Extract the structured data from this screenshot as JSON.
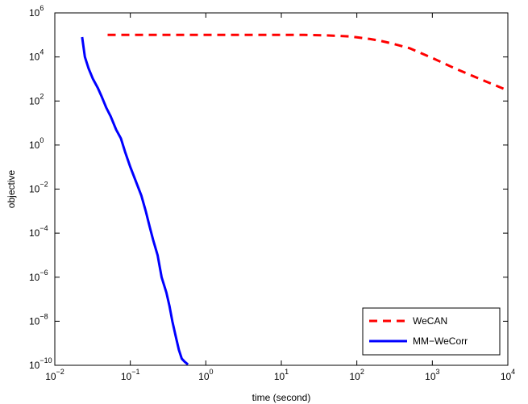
{
  "chart_data": {
    "type": "line",
    "xlabel": "time (second)",
    "ylabel": "objective",
    "x_scale": "log",
    "y_scale": "log",
    "xlim": [
      0.01,
      10000
    ],
    "ylim": [
      1e-10,
      1000000
    ],
    "grid": false,
    "legend_position": "bottom-right",
    "x_ticks": [
      {
        "value": 0.01,
        "base": "10",
        "exp": "−2"
      },
      {
        "value": 0.1,
        "base": "10",
        "exp": "−1"
      },
      {
        "value": 1,
        "base": "10",
        "exp": "0"
      },
      {
        "value": 10,
        "base": "10",
        "exp": "1"
      },
      {
        "value": 100,
        "base": "10",
        "exp": "2"
      },
      {
        "value": 1000,
        "base": "10",
        "exp": "3"
      },
      {
        "value": 10000,
        "base": "10",
        "exp": "4"
      }
    ],
    "y_ticks": [
      {
        "value": 1e-10,
        "base": "10",
        "exp": "−10"
      },
      {
        "value": 1e-08,
        "base": "10",
        "exp": "−8"
      },
      {
        "value": 1e-06,
        "base": "10",
        "exp": "−6"
      },
      {
        "value": 0.0001,
        "base": "10",
        "exp": "−4"
      },
      {
        "value": 0.01,
        "base": "10",
        "exp": "−2"
      },
      {
        "value": 1,
        "base": "10",
        "exp": "0"
      },
      {
        "value": 100,
        "base": "10",
        "exp": "2"
      },
      {
        "value": 10000,
        "base": "10",
        "exp": "4"
      },
      {
        "value": 1000000,
        "base": "10",
        "exp": "6"
      }
    ],
    "series": [
      {
        "name": "WeCAN",
        "color": "#ff0000",
        "style": "dashed",
        "x": [
          0.05,
          0.1,
          0.5,
          1,
          5,
          10,
          20,
          40,
          60,
          80,
          100,
          150,
          200,
          300,
          500,
          1000,
          2000,
          5000,
          10000
        ],
        "y": [
          100000,
          100000,
          100000,
          100000,
          100000,
          100000,
          100000,
          95000,
          90000,
          85000,
          78000,
          65000,
          55000,
          40000,
          25000,
          9000,
          3000,
          800,
          300
        ]
      },
      {
        "name": "MM−WeCorr",
        "color": "#0000ff",
        "style": "solid",
        "x": [
          0.023,
          0.025,
          0.028,
          0.032,
          0.037,
          0.042,
          0.048,
          0.055,
          0.065,
          0.075,
          0.085,
          0.1,
          0.12,
          0.14,
          0.16,
          0.18,
          0.2,
          0.23,
          0.26,
          0.3,
          0.33,
          0.36,
          0.4,
          0.44,
          0.48,
          0.52,
          0.56,
          0.58
        ],
        "y": [
          80000,
          10000,
          3000,
          1000,
          400,
          150,
          50,
          20,
          5,
          2,
          0.5,
          0.1,
          0.02,
          0.005,
          0.001,
          0.0002,
          5e-05,
          1e-05,
          1e-06,
          2e-07,
          5e-08,
          1e-08,
          2e-09,
          5e-10,
          2e-10,
          1.5e-10,
          1.2e-10,
          1.1e-10
        ]
      }
    ]
  }
}
